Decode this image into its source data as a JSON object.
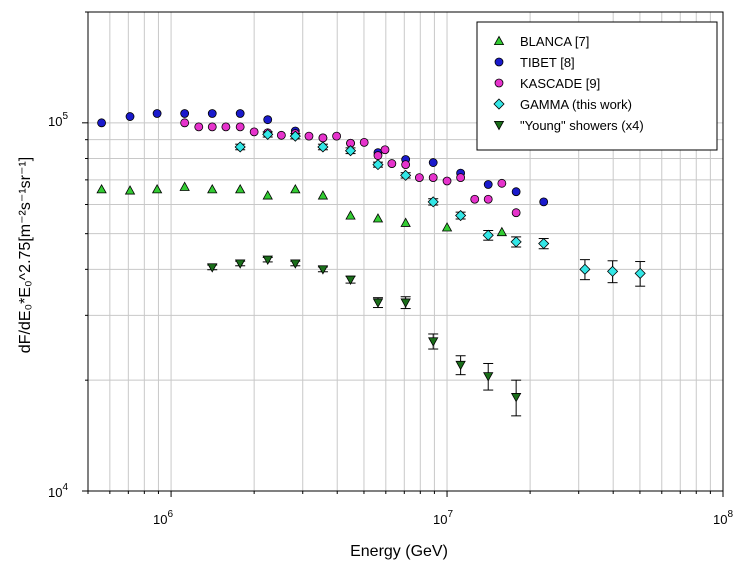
{
  "chart_data": {
    "type": "scatter",
    "xlabel": "Energy (GeV)",
    "ylabel": "dF/dE₀*E₀^2.75[m⁻²s⁻¹sr⁻¹]",
    "xscale": "log",
    "yscale": "log",
    "xlim": [
      500000,
      100000000
    ],
    "ylim": [
      10000,
      200000
    ],
    "grid": true,
    "legend_position": "top-right",
    "x_tick_labels": [
      {
        "base": "10",
        "exp": "6",
        "value": 1000000
      },
      {
        "base": "10",
        "exp": "7",
        "value": 10000000
      },
      {
        "base": "10",
        "exp": "8",
        "value": 100000000
      }
    ],
    "y_tick_labels": [
      {
        "base": "10",
        "exp": "4",
        "value": 10000
      },
      {
        "base": "10",
        "exp": "5",
        "value": 100000
      }
    ],
    "series": [
      {
        "name": "BLANCA [7]",
        "marker": "triangle-up",
        "color": "#33cc33",
        "points": [
          {
            "x": 560000,
            "y": 66000
          },
          {
            "x": 710000,
            "y": 65500
          },
          {
            "x": 890000,
            "y": 66000
          },
          {
            "x": 1120000,
            "y": 67000
          },
          {
            "x": 1410000,
            "y": 66000
          },
          {
            "x": 1780000,
            "y": 66000
          },
          {
            "x": 2240000,
            "y": 63500
          },
          {
            "x": 2820000,
            "y": 66000
          },
          {
            "x": 3550000,
            "y": 63500
          },
          {
            "x": 4470000,
            "y": 56000
          },
          {
            "x": 5620000,
            "y": 55000
          },
          {
            "x": 7080000,
            "y": 53500
          },
          {
            "x": 10000000,
            "y": 52000
          },
          {
            "x": 15800000,
            "y": 50500
          }
        ]
      },
      {
        "name": "TIBET [8]",
        "marker": "circle",
        "color": "#1a1acc",
        "points": [
          {
            "x": 560000,
            "y": 100000
          },
          {
            "x": 710000,
            "y": 104000
          },
          {
            "x": 890000,
            "y": 106000
          },
          {
            "x": 1120000,
            "y": 106000
          },
          {
            "x": 1410000,
            "y": 106000
          },
          {
            "x": 1780000,
            "y": 106000
          },
          {
            "x": 2240000,
            "y": 102000
          },
          {
            "x": 2820000,
            "y": 95000
          },
          {
            "x": 3550000,
            "y": 91000
          },
          {
            "x": 4470000,
            "y": 88000
          },
          {
            "x": 5620000,
            "y": 83000
          },
          {
            "x": 7080000,
            "y": 79500
          },
          {
            "x": 8910000,
            "y": 78000
          },
          {
            "x": 11200000,
            "y": 73000
          },
          {
            "x": 14100000,
            "y": 68000
          },
          {
            "x": 17800000,
            "y": 65000
          },
          {
            "x": 22400000,
            "y": 61000
          }
        ]
      },
      {
        "name": "KASCADE [9]",
        "marker": "circle",
        "color": "#e633cc",
        "points": [
          {
            "x": 1120000,
            "y": 100000
          },
          {
            "x": 1260000,
            "y": 97500
          },
          {
            "x": 1410000,
            "y": 97500
          },
          {
            "x": 1580000,
            "y": 97500
          },
          {
            "x": 1780000,
            "y": 97500
          },
          {
            "x": 2000000,
            "y": 94500
          },
          {
            "x": 2240000,
            "y": 94000
          },
          {
            "x": 2510000,
            "y": 92500
          },
          {
            "x": 2820000,
            "y": 93500
          },
          {
            "x": 3160000,
            "y": 92000
          },
          {
            "x": 3550000,
            "y": 91000
          },
          {
            "x": 3980000,
            "y": 92000
          },
          {
            "x": 4470000,
            "y": 88000
          },
          {
            "x": 5010000,
            "y": 88500
          },
          {
            "x": 5620000,
            "y": 81500
          },
          {
            "x": 5960000,
            "y": 84500
          },
          {
            "x": 6310000,
            "y": 77500
          },
          {
            "x": 7080000,
            "y": 77000
          },
          {
            "x": 7940000,
            "y": 71000
          },
          {
            "x": 8910000,
            "y": 71000
          },
          {
            "x": 10000000,
            "y": 69500
          },
          {
            "x": 11200000,
            "y": 71000
          },
          {
            "x": 12600000,
            "y": 62000
          },
          {
            "x": 14100000,
            "y": 62000
          },
          {
            "x": 15800000,
            "y": 68500
          },
          {
            "x": 17800000,
            "y": 57000
          }
        ]
      },
      {
        "name": "GAMMA (this work)",
        "marker": "diamond",
        "color": "#33e6e6",
        "points": [
          {
            "x": 1780000,
            "y": 86000,
            "err": 1500
          },
          {
            "x": 2240000,
            "y": 93000,
            "err": 1500
          },
          {
            "x": 2820000,
            "y": 92000,
            "err": 1500
          },
          {
            "x": 3550000,
            "y": 86000,
            "err": 1500
          },
          {
            "x": 4470000,
            "y": 84000,
            "err": 1500
          },
          {
            "x": 5620000,
            "y": 77000,
            "err": 1200
          },
          {
            "x": 7080000,
            "y": 72000,
            "err": 1200
          },
          {
            "x": 8910000,
            "y": 61000,
            "err": 1200
          },
          {
            "x": 11200000,
            "y": 56000,
            "err": 1200
          },
          {
            "x": 14100000,
            "y": 49500,
            "err": 1500
          },
          {
            "x": 17800000,
            "y": 47500,
            "err": 1500
          },
          {
            "x": 22400000,
            "y": 47000,
            "err": 1500
          },
          {
            "x": 31600000,
            "y": 40000,
            "err": 2500
          },
          {
            "x": 39800000,
            "y": 39500,
            "err": 2700
          },
          {
            "x": 50100000,
            "y": 39000,
            "err": 3000
          }
        ]
      },
      {
        "name": "\"Young\" showers (x4)",
        "marker": "triangle-down",
        "color": "#1a6e1a",
        "points": [
          {
            "x": 1410000,
            "y": 40500,
            "err": 600
          },
          {
            "x": 1780000,
            "y": 41500,
            "err": 600
          },
          {
            "x": 2240000,
            "y": 42500,
            "err": 600
          },
          {
            "x": 2820000,
            "y": 41500,
            "err": 600
          },
          {
            "x": 3550000,
            "y": 40000,
            "err": 600
          },
          {
            "x": 4470000,
            "y": 37500,
            "err": 800
          },
          {
            "x": 5620000,
            "y": 32500,
            "err": 1000
          },
          {
            "x": 7080000,
            "y": 32500,
            "err": 1200
          },
          {
            "x": 8910000,
            "y": 25500,
            "err": 1200
          },
          {
            "x": 11200000,
            "y": 22000,
            "err": 1300
          },
          {
            "x": 14100000,
            "y": 20500,
            "err": 1700
          },
          {
            "x": 17800000,
            "y": 18000,
            "err": 2000
          }
        ]
      }
    ]
  }
}
